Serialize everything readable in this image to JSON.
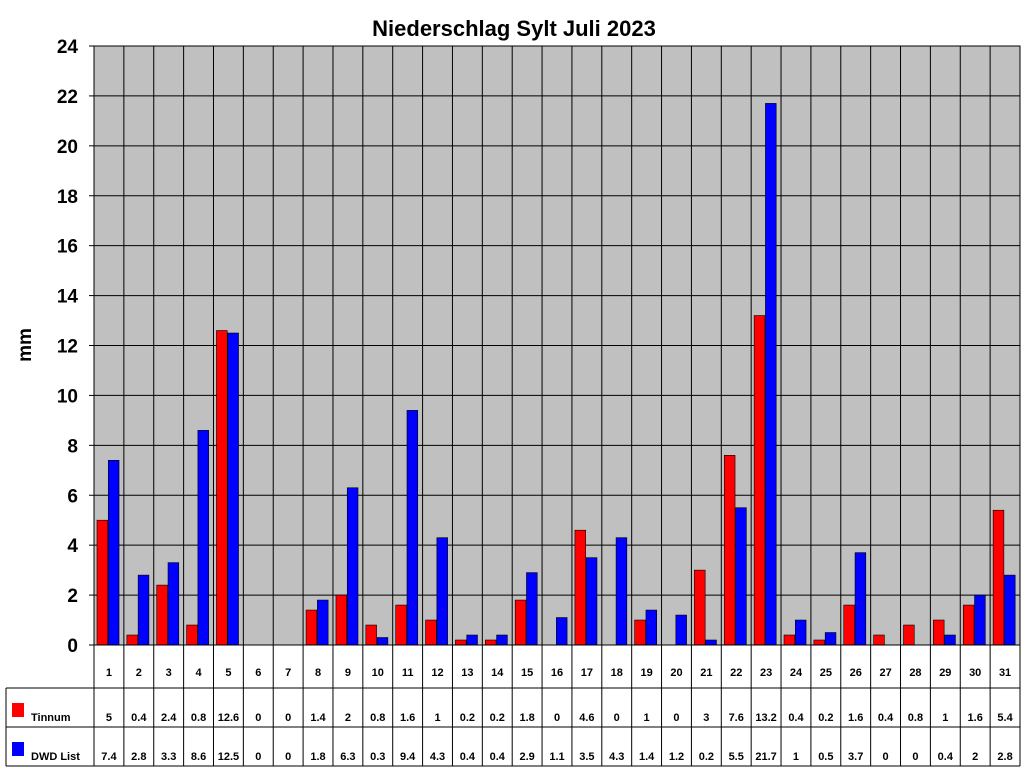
{
  "chart_data": {
    "type": "bar",
    "title": "Niederschlag Sylt Juli 2023",
    "ylabel": "mm",
    "xlabel": "",
    "ylim": [
      0,
      24
    ],
    "yticks": [
      0,
      2,
      4,
      6,
      8,
      10,
      12,
      14,
      16,
      18,
      20,
      22,
      24
    ],
    "grid": true,
    "categories": [
      "1",
      "2",
      "3",
      "4",
      "5",
      "6",
      "7",
      "8",
      "9",
      "10",
      "11",
      "12",
      "13",
      "14",
      "15",
      "16",
      "17",
      "18",
      "19",
      "20",
      "21",
      "22",
      "23",
      "24",
      "25",
      "26",
      "27",
      "28",
      "29",
      "30",
      "31"
    ],
    "series": [
      {
        "name": "Tinnum",
        "color": "#ff0000",
        "values": [
          5,
          0.4,
          2.4,
          0.8,
          12.6,
          0,
          0,
          1.4,
          2,
          0.8,
          1.6,
          1,
          0.2,
          0.2,
          1.8,
          0,
          4.6,
          0,
          1,
          0,
          3,
          7.6,
          13.2,
          0.4,
          0.2,
          1.6,
          0.4,
          0.8,
          1,
          1.6,
          5.4
        ]
      },
      {
        "name": "DWD List",
        "color": "#0000ff",
        "values": [
          7.4,
          2.8,
          3.3,
          8.6,
          12.5,
          0,
          0,
          1.8,
          6.3,
          0.3,
          9.4,
          4.3,
          0.4,
          0.4,
          2.9,
          1.1,
          3.5,
          4.3,
          1.4,
          1.2,
          0.2,
          5.5,
          21.7,
          1,
          0.5,
          3.7,
          0,
          0,
          0.4,
          2,
          2.8
        ]
      }
    ],
    "plot_background": "#c0c0c0",
    "legend_placement": "data-table-left"
  }
}
